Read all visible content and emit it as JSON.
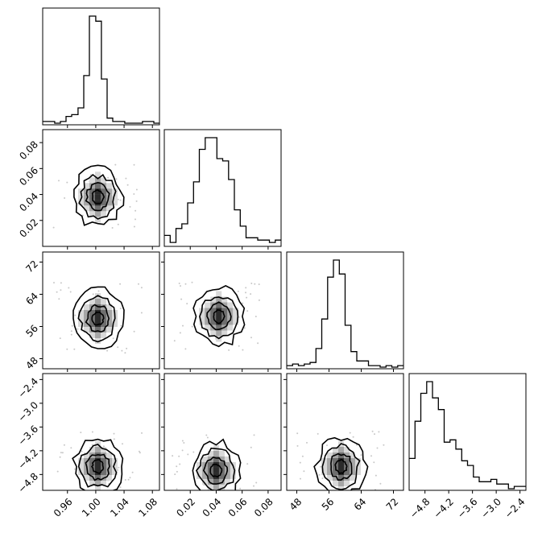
{
  "figure": {
    "type": "corner plot",
    "n_params": 4
  },
  "chart_data": {
    "type": "corner",
    "parameters": [
      {
        "index": 0,
        "range": [
          0.925,
          1.09
        ],
        "ticks": [
          0.96,
          1.0,
          1.04,
          1.08
        ],
        "tick_labels": [
          "0.96",
          "1.00",
          "1.04",
          "1.08"
        ]
      },
      {
        "index": 1,
        "range": [
          0.0,
          0.09
        ],
        "ticks": [
          0.02,
          0.04,
          0.06,
          0.08
        ],
        "tick_labels": [
          "0.02",
          "0.04",
          "0.06",
          "0.08"
        ]
      },
      {
        "index": 2,
        "range": [
          45.5,
          74.5
        ],
        "ticks": [
          48,
          56,
          64,
          72
        ],
        "tick_labels": [
          "48",
          "56",
          "64",
          "72"
        ]
      },
      {
        "index": 3,
        "range": [
          -5.2,
          -2.25
        ],
        "ticks": [
          -4.8,
          -4.2,
          -3.6,
          -3.0,
          -2.4
        ],
        "tick_labels": [
          "−4.8",
          "−4.2",
          "−3.6",
          "−3.0",
          "−2.4"
        ]
      }
    ],
    "histograms": [
      {
        "param": 0,
        "bin_edges": [
          0.925,
          0.933,
          0.942,
          0.95,
          0.958,
          0.966,
          0.975,
          0.983,
          0.991,
          1.0,
          1.008,
          1.016,
          1.024,
          1.033,
          1.041,
          1.049,
          1.057,
          1.066,
          1.074,
          1.082,
          1.09
        ],
        "counts": [
          1,
          1,
          0,
          1,
          4,
          5,
          9,
          28,
          63,
          60,
          26,
          3,
          1,
          1,
          0,
          0,
          0,
          1,
          1,
          0
        ]
      },
      {
        "param": 1,
        "bin_edges": [
          0.0,
          0.0045,
          0.009,
          0.0135,
          0.018,
          0.0225,
          0.027,
          0.0315,
          0.036,
          0.0405,
          0.045,
          0.0495,
          0.054,
          0.0585,
          0.063,
          0.0675,
          0.072,
          0.0765,
          0.081,
          0.0855,
          0.09
        ],
        "counts": [
          4,
          1,
          7,
          9,
          18,
          27,
          41,
          46,
          46,
          37,
          36,
          28,
          15,
          8,
          3,
          3,
          2,
          2,
          1,
          2
        ]
      },
      {
        "param": 2,
        "bin_edges": [
          45.5,
          46.95,
          48.4,
          49.85,
          51.3,
          52.75,
          54.2,
          55.65,
          57.1,
          58.55,
          60.0,
          61.45,
          62.9,
          64.35,
          65.8,
          67.25,
          68.7,
          70.15,
          71.6,
          73.05,
          74.5
        ],
        "counts": [
          1,
          2,
          1,
          2,
          3,
          12,
          31,
          58,
          69,
          60,
          27,
          10,
          4,
          4,
          1,
          1,
          0,
          1,
          0,
          1
        ]
      },
      {
        "param": 3,
        "bin_edges": [
          -5.2,
          -5.0525,
          -4.905,
          -4.7575,
          -4.61,
          -4.4625,
          -4.315,
          -4.1675,
          -4.02,
          -3.8725,
          -3.725,
          -3.5775,
          -3.43,
          -3.2825,
          -3.135,
          -2.9875,
          -2.84,
          -2.6925,
          -2.545,
          -2.3975,
          -2.25
        ],
        "counts": [
          13,
          29,
          41,
          46,
          39,
          34,
          20,
          21,
          17,
          12,
          10,
          5,
          3,
          3,
          4,
          2,
          2,
          0,
          1,
          1
        ]
      }
    ],
    "contour_panels": [
      {
        "x_param": 0,
        "y_param": 1,
        "mode": [
          1.003,
          0.038
        ]
      },
      {
        "x_param": 0,
        "y_param": 2,
        "mode": [
          1.003,
          58.0
        ]
      },
      {
        "x_param": 1,
        "y_param": 2,
        "mode": [
          0.042,
          58.5
        ]
      },
      {
        "x_param": 0,
        "y_param": 3,
        "mode": [
          1.003,
          -4.6
        ]
      },
      {
        "x_param": 1,
        "y_param": 3,
        "mode": [
          0.04,
          -4.7
        ]
      },
      {
        "x_param": 2,
        "y_param": 3,
        "mode": [
          59.0,
          -4.6
        ]
      }
    ],
    "xlabel": "",
    "ylabel": "",
    "grid": false
  }
}
